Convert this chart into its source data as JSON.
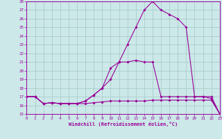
{
  "xlabel": "Windchill (Refroidissement éolien,°C)",
  "background_color": "#cce8e8",
  "grid_color": "#aacccc",
  "line_color": "#990099",
  "hours": [
    0,
    1,
    2,
    3,
    4,
    5,
    6,
    7,
    8,
    9,
    10,
    11,
    12,
    13,
    14,
    15,
    16,
    17,
    18,
    19,
    20,
    21,
    22,
    23
  ],
  "windchill_line": [
    17,
    17,
    16.2,
    16.3,
    16.2,
    16.2,
    16.2,
    16.5,
    17.2,
    18.0,
    19.0,
    21.0,
    23.0,
    25.0,
    27.0,
    28.0,
    27.0,
    26.5,
    26.0,
    25.0,
    17.0,
    17.0,
    17.0,
    15.0
  ],
  "temp_line": [
    17,
    17,
    16.2,
    16.3,
    16.2,
    16.2,
    16.2,
    16.5,
    17.2,
    18.0,
    20.3,
    21.0,
    21.0,
    21.2,
    21.0,
    21.0,
    17.0,
    17.0,
    17.0,
    17.0,
    17.0,
    17.0,
    16.8,
    15.0
  ],
  "lower_line": [
    17,
    17,
    16.2,
    16.3,
    16.2,
    16.2,
    16.2,
    16.2,
    16.3,
    16.4,
    16.5,
    16.5,
    16.5,
    16.5,
    16.5,
    16.6,
    16.6,
    16.6,
    16.6,
    16.6,
    16.6,
    16.6,
    16.6,
    15.0
  ],
  "ylim": [
    15,
    28
  ],
  "yticks": [
    15,
    16,
    17,
    18,
    19,
    20,
    21,
    22,
    23,
    24,
    25,
    26,
    27,
    28
  ],
  "xticks": [
    0,
    1,
    2,
    3,
    4,
    5,
    6,
    7,
    8,
    9,
    10,
    11,
    12,
    13,
    14,
    15,
    16,
    17,
    18,
    19,
    20,
    21,
    22,
    23
  ]
}
